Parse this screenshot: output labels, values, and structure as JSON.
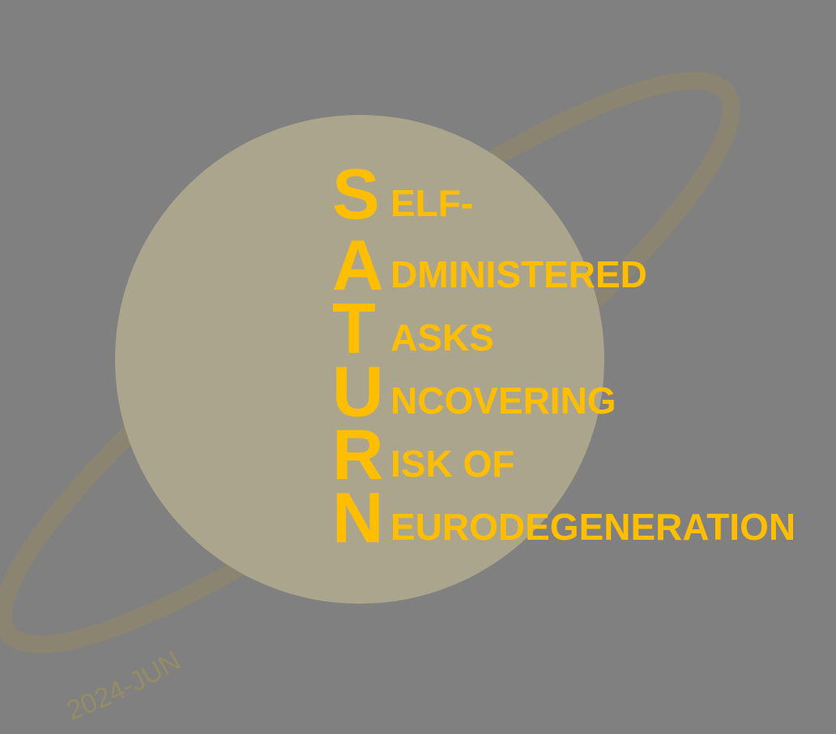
{
  "logo": {
    "lines": [
      {
        "initial": "S",
        "rest": "ELF-"
      },
      {
        "initial": "A",
        "rest": "DMINISTERED"
      },
      {
        "initial": "T",
        "rest": "ASKS"
      },
      {
        "initial": "U",
        "rest": "NCOVERING"
      },
      {
        "initial": "R",
        "rest": "ISK OF"
      },
      {
        "initial": "N",
        "rest": "EURODEGENERATION"
      }
    ],
    "date_stamp": "2024-JUN"
  },
  "colors": {
    "background": "#808080",
    "planet": "#ACA58E",
    "ring": "#8B8470",
    "ring_edge": "#9A937C",
    "text": "#FFBF00"
  }
}
